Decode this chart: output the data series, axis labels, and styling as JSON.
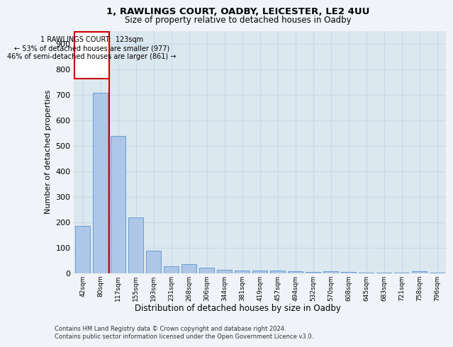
{
  "title": "1, RAWLINGS COURT, OADBY, LEICESTER, LE2 4UU",
  "subtitle": "Size of property relative to detached houses in Oadby",
  "xlabel": "Distribution of detached houses by size in Oadby",
  "ylabel": "Number of detached properties",
  "categories": [
    "42sqm",
    "80sqm",
    "117sqm",
    "155sqm",
    "193sqm",
    "231sqm",
    "268sqm",
    "306sqm",
    "344sqm",
    "381sqm",
    "419sqm",
    "457sqm",
    "494sqm",
    "532sqm",
    "570sqm",
    "608sqm",
    "645sqm",
    "683sqm",
    "721sqm",
    "758sqm",
    "796sqm"
  ],
  "values": [
    185,
    707,
    537,
    220,
    90,
    27,
    35,
    22,
    14,
    10,
    10,
    10,
    7,
    5,
    8,
    5,
    2,
    3,
    2,
    8,
    3
  ],
  "bar_color": "#aec6e8",
  "bar_edge_color": "#5a96c8",
  "property_value": "123sqm",
  "annotation_line1": "1 RAWLINGS COURT:  123sqm",
  "annotation_line2": "← 53% of detached houses are smaller (977)",
  "annotation_line3": "46% of semi-detached houses are larger (861) →",
  "annotation_box_color": "#ffffff",
  "annotation_box_edge_color": "#cc0000",
  "vline_color": "#cc0000",
  "ylim": [
    0,
    950
  ],
  "yticks": [
    0,
    100,
    200,
    300,
    400,
    500,
    600,
    700,
    800,
    900
  ],
  "grid_color": "#c8d8e8",
  "background_color": "#dce8f0",
  "fig_background_color": "#f0f4f8",
  "footer_line1": "Contains HM Land Registry data © Crown copyright and database right 2024.",
  "footer_line2": "Contains public sector information licensed under the Open Government Licence v3.0."
}
